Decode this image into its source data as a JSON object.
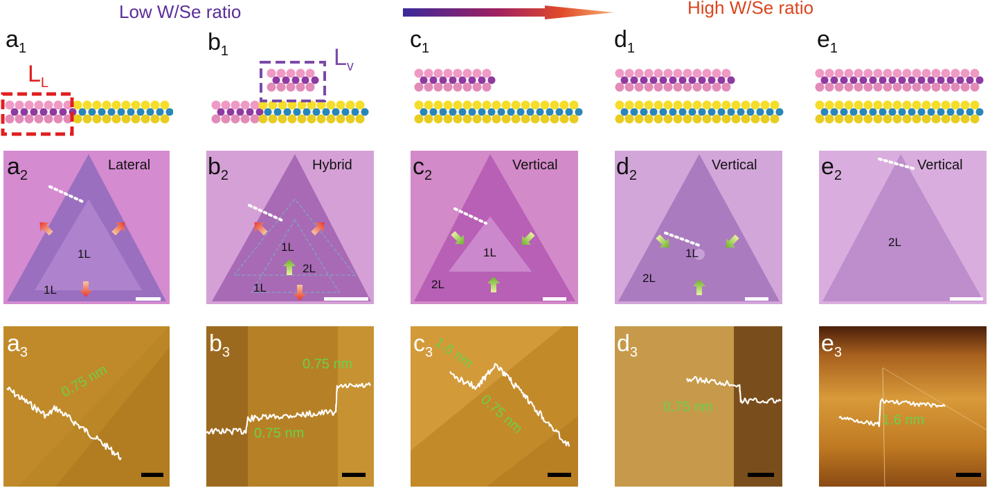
{
  "header": {
    "left_label": "Low W/Se ratio",
    "right_label": "High W/Se ratio",
    "left_color": "#5b2d9a",
    "right_color": "#d9451e"
  },
  "row1": {
    "labels": [
      {
        "main": "a",
        "sub": "1"
      },
      {
        "main": "b",
        "sub": "1"
      },
      {
        "main": "c",
        "sub": "1"
      },
      {
        "main": "d",
        "sub": "1"
      },
      {
        "main": "e",
        "sub": "1"
      }
    ],
    "ll_label": {
      "main": "L",
      "sub": "L"
    },
    "lv_label": {
      "main": "L",
      "sub": "v"
    }
  },
  "row2": {
    "panels": [
      {
        "main": "a",
        "sub": "2",
        "mode": "Lateral",
        "inner": "1L",
        "outer": "1L"
      },
      {
        "main": "b",
        "sub": "2",
        "mode": "Hybrid",
        "inner": "1L",
        "mid": "2L",
        "outer": "1L"
      },
      {
        "main": "c",
        "sub": "2",
        "mode": "Vertical",
        "inner": "1L",
        "outer": "2L"
      },
      {
        "main": "d",
        "sub": "2",
        "mode": "Vertical",
        "inner": "1L",
        "outer": "2L"
      },
      {
        "main": "e",
        "sub": "2",
        "mode": "Vertical",
        "inner": "2L"
      }
    ]
  },
  "row3": {
    "panels": [
      {
        "main": "a",
        "sub": "3",
        "heights": [
          "0.75 nm"
        ]
      },
      {
        "main": "b",
        "sub": "3",
        "heights": [
          "0.75 nm",
          "0.75 nm"
        ]
      },
      {
        "main": "c",
        "sub": "3",
        "heights": [
          "1.6 nm",
          "0.75 nm"
        ]
      },
      {
        "main": "d",
        "sub": "3",
        "heights": [
          "0.75 nm"
        ]
      },
      {
        "main": "e",
        "sub": "3",
        "heights": [
          "1.6 nm"
        ]
      }
    ]
  }
}
